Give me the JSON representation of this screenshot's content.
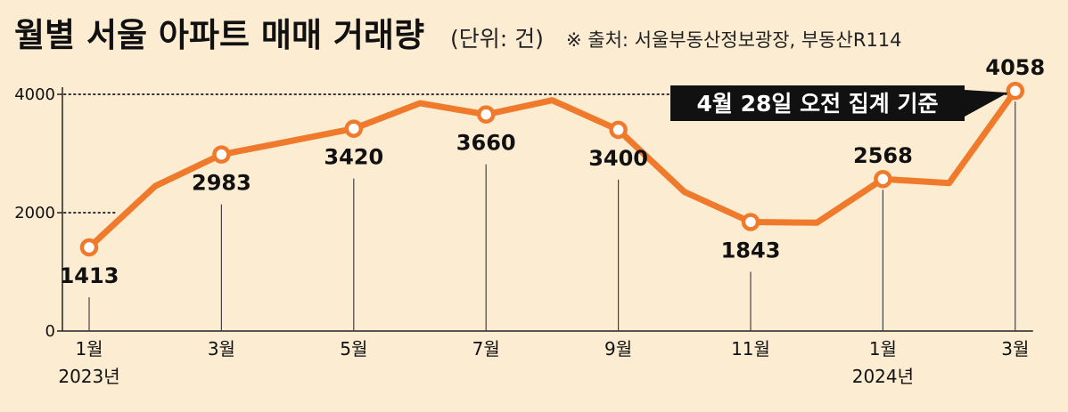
{
  "chart_data": {
    "type": "line",
    "title": "월별 서울 아파트 매매 거래량",
    "unit": "(단위: 건)",
    "source": "※ 출처: 서울부동산정보광장, 부동산R114",
    "annotation": "4월 28일 오전 집계 기준",
    "ylim": [
      0,
      4000
    ],
    "yticks": [
      0,
      2000,
      4000
    ],
    "series": [
      {
        "name": "거래량",
        "color": "#f07a2c",
        "values": [
          1413,
          2450,
          2983,
          3200,
          3420,
          3850,
          3660,
          3900,
          3400,
          2350,
          1843,
          1830,
          2568,
          2500,
          4058
        ]
      }
    ],
    "labeled_points": [
      {
        "index": 0,
        "label": "1413",
        "pos": "below"
      },
      {
        "index": 2,
        "label": "2983",
        "pos": "below"
      },
      {
        "index": 4,
        "label": "3420",
        "pos": "below"
      },
      {
        "index": 6,
        "label": "3660",
        "pos": "below"
      },
      {
        "index": 8,
        "label": "3400",
        "pos": "below"
      },
      {
        "index": 10,
        "label": "1843",
        "pos": "below"
      },
      {
        "index": 12,
        "label": "2568",
        "pos": "above"
      },
      {
        "index": 14,
        "label": "4058",
        "pos": "above"
      }
    ],
    "x_ticks": [
      {
        "index": 0,
        "label": "1월",
        "sub": "2023년"
      },
      {
        "index": 2,
        "label": "3월",
        "sub": ""
      },
      {
        "index": 4,
        "label": "5월",
        "sub": ""
      },
      {
        "index": 6,
        "label": "7월",
        "sub": ""
      },
      {
        "index": 8,
        "label": "9월",
        "sub": ""
      },
      {
        "index": 10,
        "label": "11월",
        "sub": ""
      },
      {
        "index": 12,
        "label": "1월",
        "sub": "2024년"
      },
      {
        "index": 14,
        "label": "3월",
        "sub": ""
      }
    ]
  }
}
